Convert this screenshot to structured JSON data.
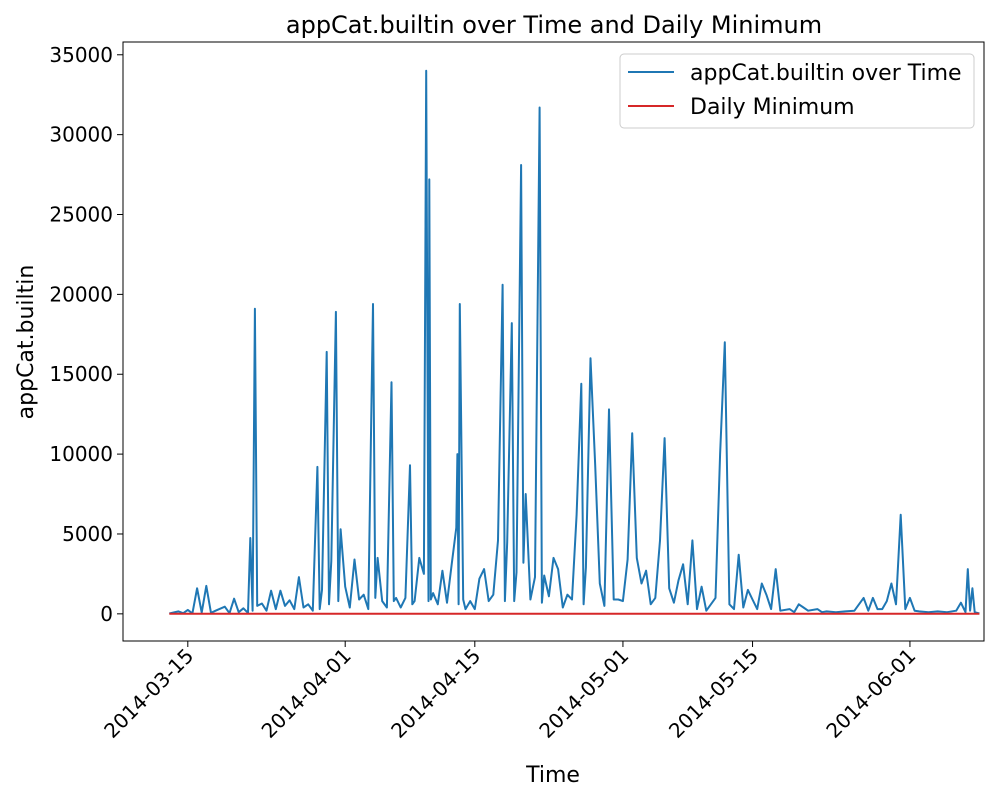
{
  "chart_data": {
    "type": "line",
    "title": "appCat.builtin over Time and Daily Minimum",
    "xlabel": "Time",
    "ylabel": "appCat.builtin",
    "xlim": [
      "2014-03-08",
      "2014-06-09"
    ],
    "ylim": [
      -1700,
      35800
    ],
    "x_ticks": [
      "2014-03-15",
      "2014-04-01",
      "2014-04-15",
      "2014-05-01",
      "2014-05-15",
      "2014-06-01"
    ],
    "y_ticks": [
      0,
      5000,
      10000,
      15000,
      20000,
      25000,
      30000,
      35000
    ],
    "y_tick_labels": [
      "0",
      "5000",
      "10000",
      "15000",
      "20000",
      "25000",
      "30000",
      "35000"
    ],
    "legend": {
      "position": "top-right",
      "frame": true
    },
    "series": [
      {
        "name": "appCat.builtin over Time",
        "color": "#1f77b4",
        "points": [
          [
            "2014-03-13",
            20
          ],
          [
            "2014-03-14",
            150
          ],
          [
            "2014-03-14T12:00",
            40
          ],
          [
            "2014-03-15",
            250
          ],
          [
            "2014-03-15T12:00",
            30
          ],
          [
            "2014-03-16",
            1600
          ],
          [
            "2014-03-16T12:00",
            80
          ],
          [
            "2014-03-17",
            1750
          ],
          [
            "2014-03-17T12:00",
            60
          ],
          [
            "2014-03-18",
            200
          ],
          [
            "2014-03-19",
            450
          ],
          [
            "2014-03-19T12:00",
            40
          ],
          [
            "2014-03-20",
            950
          ],
          [
            "2014-03-20T12:00",
            100
          ],
          [
            "2014-03-21",
            350
          ],
          [
            "2014-03-21T12:00",
            60
          ],
          [
            "2014-03-21T18:00",
            4750
          ],
          [
            "2014-03-22",
            200
          ],
          [
            "2014-03-22T06:00",
            19100
          ],
          [
            "2014-03-22T12:00",
            500
          ],
          [
            "2014-03-23",
            650
          ],
          [
            "2014-03-23T12:00",
            200
          ],
          [
            "2014-03-24",
            1450
          ],
          [
            "2014-03-24T12:00",
            300
          ],
          [
            "2014-03-25",
            1450
          ],
          [
            "2014-03-25T12:00",
            500
          ],
          [
            "2014-03-26",
            850
          ],
          [
            "2014-03-26T12:00",
            300
          ],
          [
            "2014-03-27",
            2300
          ],
          [
            "2014-03-27T12:00",
            400
          ],
          [
            "2014-03-28",
            600
          ],
          [
            "2014-03-28T12:00",
            200
          ],
          [
            "2014-03-29",
            9200
          ],
          [
            "2014-03-29T06:00",
            300
          ],
          [
            "2014-03-29T12:00",
            1500
          ],
          [
            "2014-03-30",
            16400
          ],
          [
            "2014-03-30T06:00",
            600
          ],
          [
            "2014-03-30T12:00",
            3300
          ],
          [
            "2014-03-31",
            18900
          ],
          [
            "2014-03-31T06:00",
            800
          ],
          [
            "2014-03-31T12:00",
            5300
          ],
          [
            "2014-04-01",
            1700
          ],
          [
            "2014-04-01T12:00",
            400
          ],
          [
            "2014-04-02",
            3400
          ],
          [
            "2014-04-02T12:00",
            900
          ],
          [
            "2014-04-03",
            1200
          ],
          [
            "2014-04-03T12:00",
            300
          ],
          [
            "2014-04-04",
            19400
          ],
          [
            "2014-04-04T06:00",
            1000
          ],
          [
            "2014-04-04T12:00",
            3500
          ],
          [
            "2014-04-05",
            800
          ],
          [
            "2014-04-05T12:00",
            400
          ],
          [
            "2014-04-06",
            14500
          ],
          [
            "2014-04-06T06:00",
            800
          ],
          [
            "2014-04-06T12:00",
            1000
          ],
          [
            "2014-04-07",
            400
          ],
          [
            "2014-04-07T12:00",
            1000
          ],
          [
            "2014-04-08",
            9300
          ],
          [
            "2014-04-08T06:00",
            600
          ],
          [
            "2014-04-08T12:00",
            800
          ],
          [
            "2014-04-09",
            3500
          ],
          [
            "2014-04-09T12:00",
            2500
          ],
          [
            "2014-04-09T18:00",
            34000
          ],
          [
            "2014-04-10",
            800
          ],
          [
            "2014-04-10T02:00",
            27200
          ],
          [
            "2014-04-10T06:00",
            900
          ],
          [
            "2014-04-10T12:00",
            1300
          ],
          [
            "2014-04-11",
            600
          ],
          [
            "2014-04-11T12:00",
            2700
          ],
          [
            "2014-04-12",
            700
          ],
          [
            "2014-04-12T12:00",
            3100
          ],
          [
            "2014-04-13",
            5400
          ],
          [
            "2014-04-13T03:00",
            10000
          ],
          [
            "2014-04-13T06:00",
            600
          ],
          [
            "2014-04-13T09:00",
            19400
          ],
          [
            "2014-04-13T18:00",
            900
          ],
          [
            "2014-04-14",
            300
          ],
          [
            "2014-04-14T12:00",
            800
          ],
          [
            "2014-04-15",
            300
          ],
          [
            "2014-04-15T12:00",
            2200
          ],
          [
            "2014-04-16",
            2800
          ],
          [
            "2014-04-16T12:00",
            800
          ],
          [
            "2014-04-17",
            1200
          ],
          [
            "2014-04-17T12:00",
            4600
          ],
          [
            "2014-04-18",
            20600
          ],
          [
            "2014-04-18T06:00",
            800
          ],
          [
            "2014-04-18T12:00",
            4500
          ],
          [
            "2014-04-19",
            18200
          ],
          [
            "2014-04-19T06:00",
            800
          ],
          [
            "2014-04-19T12:00",
            2600
          ],
          [
            "2014-04-20",
            28100
          ],
          [
            "2014-04-20T06:00",
            3200
          ],
          [
            "2014-04-20T12:00",
            7500
          ],
          [
            "2014-04-21",
            900
          ],
          [
            "2014-04-21T12:00",
            2300
          ],
          [
            "2014-04-22",
            31700
          ],
          [
            "2014-04-22T06:00",
            700
          ],
          [
            "2014-04-22T12:00",
            2400
          ],
          [
            "2014-04-23",
            1100
          ],
          [
            "2014-04-23T12:00",
            3500
          ],
          [
            "2014-04-24",
            2800
          ],
          [
            "2014-04-24T12:00",
            400
          ],
          [
            "2014-04-25",
            1200
          ],
          [
            "2014-04-25T12:00",
            900
          ],
          [
            "2014-04-26",
            6200
          ],
          [
            "2014-04-26T12:00",
            14400
          ],
          [
            "2014-04-26T18:00",
            600
          ],
          [
            "2014-04-27",
            2900
          ],
          [
            "2014-04-27T12:00",
            16000
          ],
          [
            "2014-04-28",
            9300
          ],
          [
            "2014-04-28T12:00",
            1900
          ],
          [
            "2014-04-29",
            500
          ],
          [
            "2014-04-29T12:00",
            12800
          ],
          [
            "2014-04-30",
            900
          ],
          [
            "2014-04-30T12:00",
            900
          ],
          [
            "2014-05-01",
            800
          ],
          [
            "2014-05-01T12:00",
            3400
          ],
          [
            "2014-05-02",
            11300
          ],
          [
            "2014-05-02T12:00",
            3500
          ],
          [
            "2014-05-03",
            1900
          ],
          [
            "2014-05-03T12:00",
            2700
          ],
          [
            "2014-05-04",
            600
          ],
          [
            "2014-05-04T12:00",
            1000
          ],
          [
            "2014-05-05",
            4600
          ],
          [
            "2014-05-05T12:00",
            11000
          ],
          [
            "2014-05-06",
            1600
          ],
          [
            "2014-05-06T12:00",
            700
          ],
          [
            "2014-05-07",
            2100
          ],
          [
            "2014-05-07T12:00",
            3100
          ],
          [
            "2014-05-08",
            600
          ],
          [
            "2014-05-08T12:00",
            4600
          ],
          [
            "2014-05-09",
            300
          ],
          [
            "2014-05-09T12:00",
            1700
          ],
          [
            "2014-05-10",
            200
          ],
          [
            "2014-05-10T12:00",
            600
          ],
          [
            "2014-05-11",
            1000
          ],
          [
            "2014-05-11T12:00",
            10000
          ],
          [
            "2014-05-12",
            17000
          ],
          [
            "2014-05-12T12:00",
            600
          ],
          [
            "2014-05-13",
            300
          ],
          [
            "2014-05-13T12:00",
            3700
          ],
          [
            "2014-05-14",
            400
          ],
          [
            "2014-05-14T12:00",
            1500
          ],
          [
            "2014-05-15",
            900
          ],
          [
            "2014-05-15T12:00",
            300
          ],
          [
            "2014-05-16",
            1900
          ],
          [
            "2014-05-16T12:00",
            1200
          ],
          [
            "2014-05-17",
            300
          ],
          [
            "2014-05-17T12:00",
            2800
          ],
          [
            "2014-05-18",
            200
          ],
          [
            "2014-05-19",
            300
          ],
          [
            "2014-05-19T12:00",
            100
          ],
          [
            "2014-05-20",
            600
          ],
          [
            "2014-05-20T12:00",
            400
          ],
          [
            "2014-05-21",
            200
          ],
          [
            "2014-05-22",
            300
          ],
          [
            "2014-05-22T12:00",
            100
          ],
          [
            "2014-05-23",
            150
          ],
          [
            "2014-05-24",
            100
          ],
          [
            "2014-05-25",
            150
          ],
          [
            "2014-05-26",
            200
          ],
          [
            "2014-05-27",
            1000
          ],
          [
            "2014-05-27T12:00",
            200
          ],
          [
            "2014-05-28",
            1000
          ],
          [
            "2014-05-28T12:00",
            300
          ],
          [
            "2014-05-29",
            300
          ],
          [
            "2014-05-29T12:00",
            800
          ],
          [
            "2014-05-30",
            1900
          ],
          [
            "2014-05-30T12:00",
            600
          ],
          [
            "2014-05-31",
            6200
          ],
          [
            "2014-05-31T12:00",
            300
          ],
          [
            "2014-06-01",
            1000
          ],
          [
            "2014-06-01T12:00",
            200
          ],
          [
            "2014-06-02",
            150
          ],
          [
            "2014-06-03",
            100
          ],
          [
            "2014-06-04",
            150
          ],
          [
            "2014-06-05",
            100
          ],
          [
            "2014-06-06",
            200
          ],
          [
            "2014-06-06T12:00",
            700
          ],
          [
            "2014-06-07",
            100
          ],
          [
            "2014-06-07T06:00",
            2800
          ],
          [
            "2014-06-07T12:00",
            200
          ],
          [
            "2014-06-07T18:00",
            1600
          ],
          [
            "2014-06-08",
            100
          ],
          [
            "2014-06-08T12:00",
            20
          ]
        ]
      },
      {
        "name": "Daily Minimum",
        "color": "#d62728",
        "points": [
          [
            "2014-03-13",
            0
          ],
          [
            "2014-06-08T12:00",
            0
          ]
        ]
      }
    ]
  }
}
